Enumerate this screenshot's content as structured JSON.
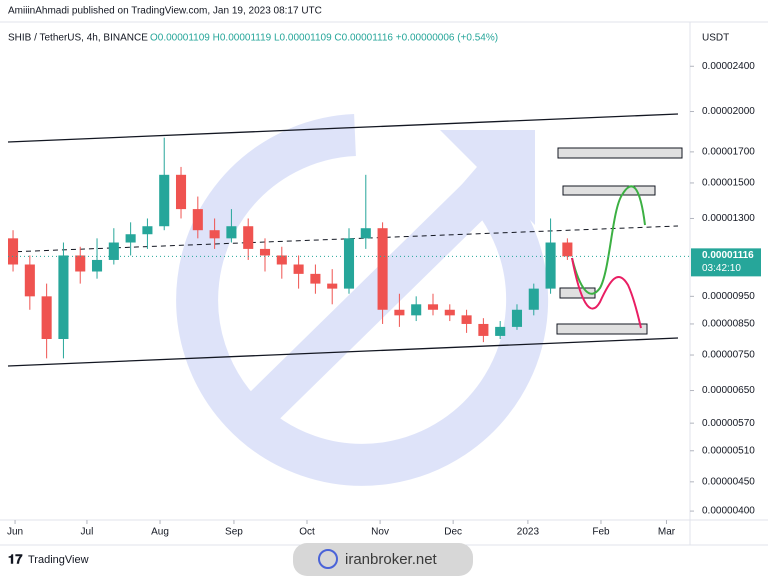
{
  "chart_data": {
    "type": "candlestick",
    "publisher": "AmiiinAhmadi published on TradingView.com, Jan 19, 2023 08:17 UTC",
    "symbol_info": "SHIB / TetherUS, 4h, BINANCE",
    "ohlc": "O0.00001109 H0.00001119 L0.00001109 C0.00001116 +0.00000006 (+0.54%)",
    "currency": "USDT",
    "last_price": {
      "value": 1.116e-05,
      "label": "0.00001116"
    },
    "countdown": "03:42:10",
    "brand": "TradingView",
    "watermark": "iranbroker.net",
    "log_scale": true,
    "up_color": "#26a69a",
    "down_color": "#ef5350",
    "x": [
      0,
      1,
      2,
      3,
      4,
      5,
      6,
      7,
      8,
      9,
      10,
      11,
      12,
      13,
      14,
      15,
      16,
      17,
      18,
      19,
      20,
      21,
      22,
      23,
      24,
      25,
      26,
      27,
      28,
      29,
      30,
      31,
      32,
      33
    ],
    "open": [
      1.2e-05,
      1.08e-05,
      9.5e-06,
      8e-06,
      1.12e-05,
      1.05e-05,
      1.1e-05,
      1.18e-05,
      1.22e-05,
      1.26e-05,
      1.55e-05,
      1.35e-05,
      1.24e-05,
      1.2e-05,
      1.26e-05,
      1.15e-05,
      1.12e-05,
      1.08e-05,
      1.04e-05,
      1e-05,
      9.8e-06,
      1.2e-05,
      1.25e-05,
      9e-06,
      8.8e-06,
      9.2e-06,
      9e-06,
      8.8e-06,
      8.5e-06,
      8.1e-06,
      8.4e-06,
      9e-06,
      9.8e-06,
      1.18e-05
    ],
    "high": [
      1.24e-05,
      1.12e-05,
      1e-05,
      1.18e-05,
      1.16e-05,
      1.2e-05,
      1.25e-05,
      1.28e-05,
      1.3e-05,
      1.8e-05,
      1.6e-05,
      1.42e-05,
      1.3e-05,
      1.35e-05,
      1.3e-05,
      1.2e-05,
      1.16e-05,
      1.12e-05,
      1.08e-05,
      1.06e-05,
      1.25e-05,
      1.55e-05,
      1.28e-05,
      9.6e-06,
      9.5e-06,
      9.6e-06,
      9.2e-06,
      9e-06,
      8.7e-06,
      8.6e-06,
      9.2e-06,
      1e-05,
      1.3e-05,
      1.2e-05
    ],
    "low": [
      1.05e-05,
      9e-06,
      7.4e-06,
      7.4e-06,
      1e-05,
      1.02e-05,
      1.08e-05,
      1.12e-05,
      1.15e-05,
      1.24e-05,
      1.3e-05,
      1.2e-05,
      1.15e-05,
      1.18e-05,
      1.1e-05,
      1.05e-05,
      1.02e-05,
      9.8e-06,
      9.6e-06,
      9.2e-06,
      9.6e-06,
      1.15e-05,
      8.5e-06,
      8.4e-06,
      8.6e-06,
      8.8e-06,
      8.6e-06,
      8.2e-06,
      7.9e-06,
      8e-06,
      8.3e-06,
      8.8e-06,
      9.6e-06,
      1.1e-05
    ],
    "close": [
      1.08e-05,
      9.5e-06,
      8e-06,
      1.12e-05,
      1.05e-05,
      1.1e-05,
      1.18e-05,
      1.22e-05,
      1.26e-05,
      1.55e-05,
      1.35e-05,
      1.24e-05,
      1.2e-05,
      1.26e-05,
      1.15e-05,
      1.12e-05,
      1.08e-05,
      1.04e-05,
      1e-05,
      9.8e-06,
      1.2e-05,
      1.25e-05,
      9e-06,
      8.8e-06,
      9.2e-06,
      9e-06,
      8.8e-06,
      8.5e-06,
      8.1e-06,
      8.4e-06,
      9e-06,
      9.8e-06,
      1.18e-05,
      1.116e-05
    ],
    "xlim": [
      -0.3,
      40.3
    ],
    "xticks": [
      {
        "value": 0.12,
        "label": "Jun"
      },
      {
        "value": 4.4,
        "label": "Jul"
      },
      {
        "value": 8.75,
        "label": "Aug"
      },
      {
        "value": 13.15,
        "label": "Sep"
      },
      {
        "value": 17.5,
        "label": "Oct"
      },
      {
        "value": 21.85,
        "label": "Nov"
      },
      {
        "value": 26.2,
        "label": "Dec"
      },
      {
        "value": 30.65,
        "label": "2023"
      },
      {
        "value": 35,
        "label": "Feb"
      },
      {
        "value": 38.9,
        "label": "Mar"
      }
    ],
    "ylim": [
      3.89e-06,
      2.8e-05
    ],
    "yticks": [
      {
        "value": 2.4e-05,
        "label": "0.00002400"
      },
      {
        "value": 2e-05,
        "label": "0.00002000"
      },
      {
        "value": 1.7e-05,
        "label": "0.00001700"
      },
      {
        "value": 1.5e-05,
        "label": "0.00001500"
      },
      {
        "value": 1.3e-05,
        "label": "0.00001300"
      },
      {
        "value": 9.5e-06,
        "label": "0.00000950"
      },
      {
        "value": 8.5e-06,
        "label": "0.00000850"
      },
      {
        "value": 7.5e-06,
        "label": "0.00000750"
      },
      {
        "value": 6.5e-06,
        "label": "0.00000650"
      },
      {
        "value": 5.7e-06,
        "label": "0.00000570"
      },
      {
        "value": 5.1e-06,
        "label": "0.00000510"
      },
      {
        "value": 4.5e-06,
        "label": "0.00000450"
      },
      {
        "value": 4e-06,
        "label": "0.00000400"
      }
    ]
  }
}
